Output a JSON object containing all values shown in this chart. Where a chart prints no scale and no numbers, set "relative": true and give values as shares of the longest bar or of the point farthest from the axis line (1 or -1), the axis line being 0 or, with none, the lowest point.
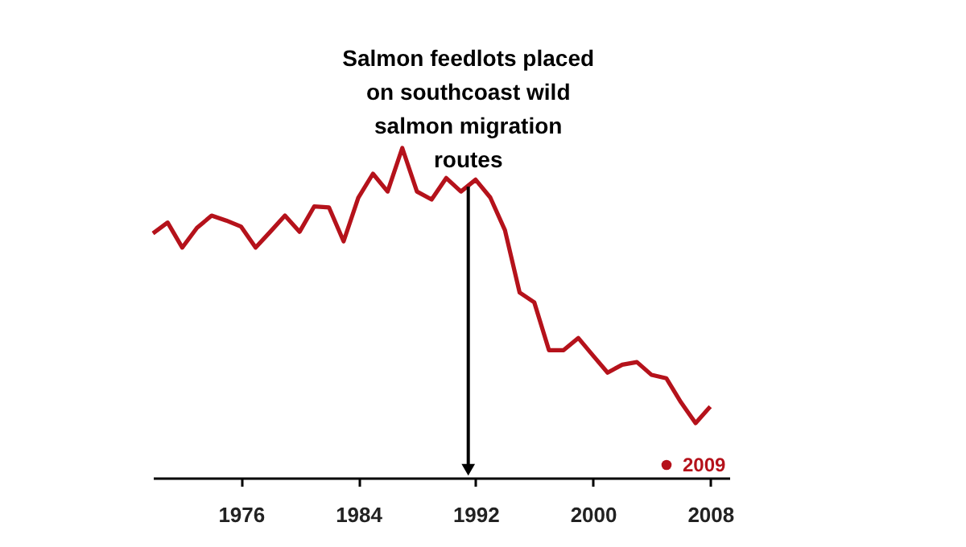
{
  "chart_data": {
    "type": "line",
    "relative": true,
    "x": [
      1970,
      1971,
      1972,
      1973,
      1974,
      1975,
      1976,
      1977,
      1978,
      1979,
      1980,
      1981,
      1982,
      1983,
      1984,
      1985,
      1986,
      1987,
      1988,
      1989,
      1990,
      1991,
      1992,
      1993,
      1994,
      1995,
      1996,
      1997,
      1998,
      1999,
      2000,
      2001,
      2002,
      2003,
      2004,
      2005,
      2006,
      2007,
      2008
    ],
    "series": [
      {
        "name": "2009",
        "color": "#b5121b",
        "values": [
          0.741,
          0.774,
          0.698,
          0.758,
          0.795,
          0.78,
          0.762,
          0.698,
          0.746,
          0.795,
          0.746,
          0.823,
          0.82,
          0.717,
          0.849,
          0.922,
          0.868,
          1,
          0.868,
          0.844,
          0.909,
          0.868,
          0.904,
          0.85,
          0.751,
          0.562,
          0.532,
          0.387,
          0.387,
          0.424,
          0.371,
          0.319,
          0.343,
          0.351,
          0.312,
          0.302,
          0.229,
          0.166,
          0.216
        ]
      }
    ],
    "xlim": [
      1970,
      2009.3
    ],
    "xticks": [
      1976,
      1984,
      1992,
      2000,
      2008
    ],
    "ref_lines": [
      {
        "axis": "x",
        "value": 1991.5,
        "label": "Salmon feedlots placed on southcoast wild salmon migration routes",
        "color": "#000000"
      }
    ],
    "legend": "bottom right",
    "grid": false,
    "marker": "none",
    "line_style": "solid"
  }
}
